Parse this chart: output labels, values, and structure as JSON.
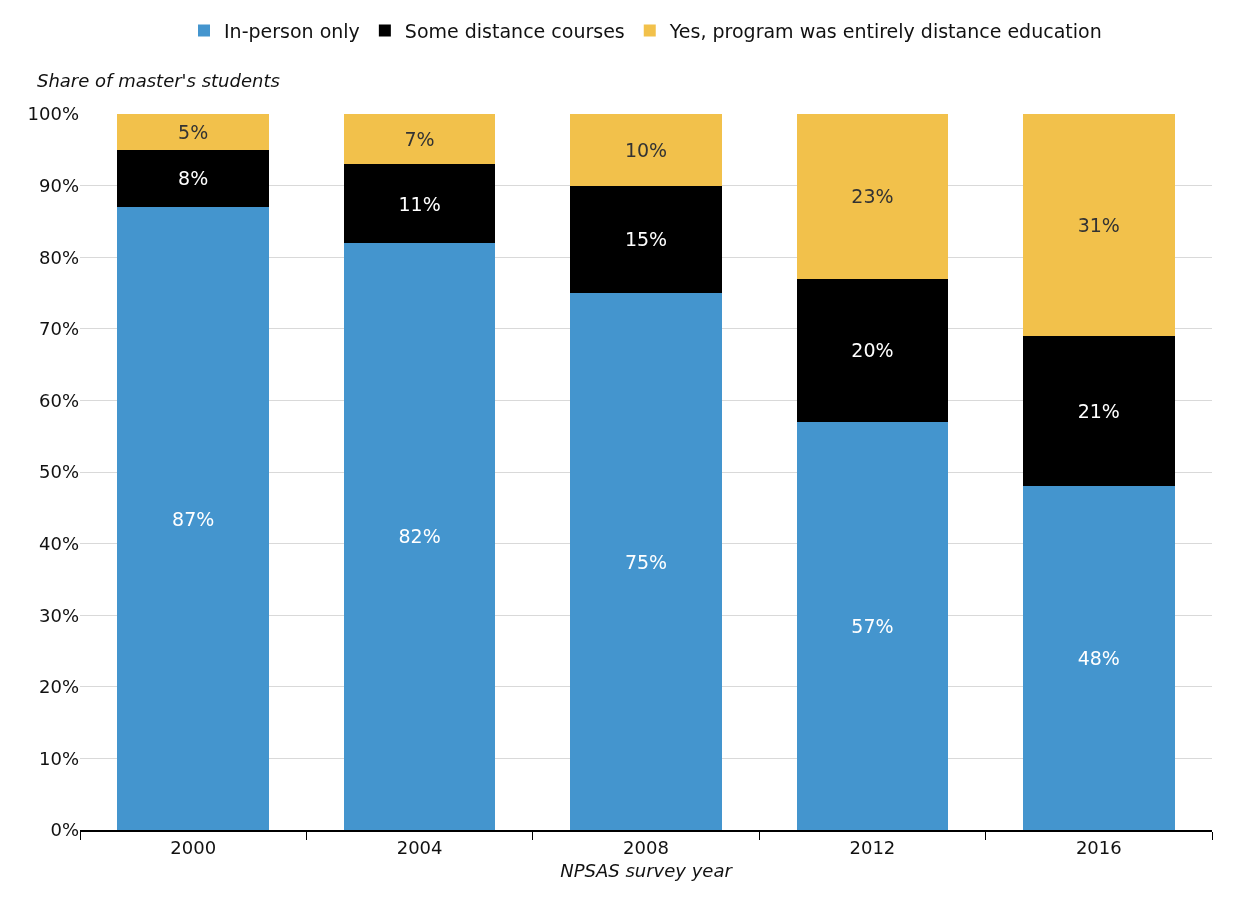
{
  "chart_data": {
    "type": "bar",
    "stacked": true,
    "ylabel": "Share of master's students",
    "xlabel": "NPSAS survey year",
    "categories": [
      "2000",
      "2004",
      "2008",
      "2012",
      "2016"
    ],
    "series": [
      {
        "name": "In-person only",
        "color": "#4495ce",
        "values": [
          87,
          82,
          75,
          57,
          48
        ],
        "value_labels": [
          "87%",
          "82%",
          "75%",
          "57%",
          "48%"
        ]
      },
      {
        "name": "Some distance courses",
        "color": "#000000",
        "values": [
          8,
          11,
          15,
          20,
          21
        ],
        "value_labels": [
          "8%",
          "11%",
          "15%",
          "20%",
          "21%"
        ]
      },
      {
        "name": "Yes, program was entirely distance education",
        "color": "#f2c14b",
        "values": [
          5,
          7,
          10,
          23,
          31
        ],
        "value_labels": [
          "5%",
          "7%",
          "10%",
          "23%",
          "31%"
        ]
      }
    ],
    "ylim": [
      0,
      100
    ],
    "yticks": [
      {
        "value": 0,
        "label": "0%"
      },
      {
        "value": 10,
        "label": "10%"
      },
      {
        "value": 20,
        "label": "20%"
      },
      {
        "value": 30,
        "label": "30%"
      },
      {
        "value": 40,
        "label": "40%"
      },
      {
        "value": 50,
        "label": "50%"
      },
      {
        "value": 60,
        "label": "60%"
      },
      {
        "value": 70,
        "label": "70%"
      },
      {
        "value": 80,
        "label": "80%"
      },
      {
        "value": 90,
        "label": "90%"
      },
      {
        "value": 100,
        "label": "100%"
      }
    ],
    "grid": "y",
    "legend": "top"
  }
}
